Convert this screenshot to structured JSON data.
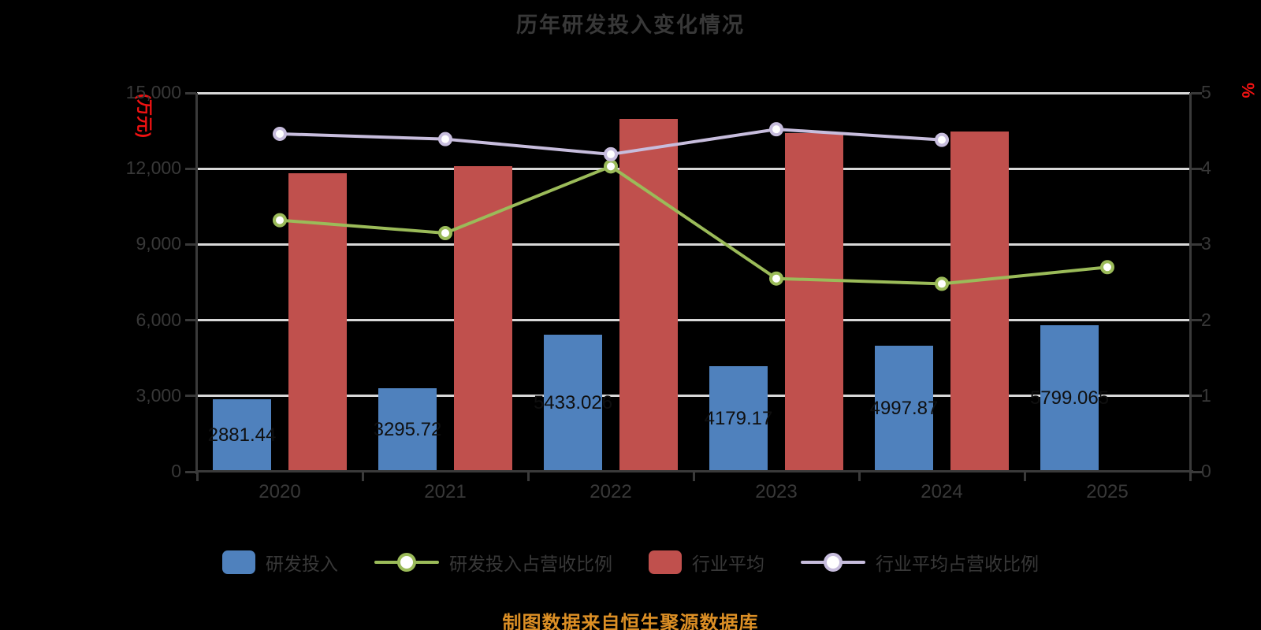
{
  "title": "历年研发投入变化情况",
  "caption": {
    "text": "制图数据来自恒生聚源数据库",
    "color": "#dc8f25"
  },
  "background": "#000000",
  "chart_data": {
    "type": "combo",
    "title": "历年研发投入变化情况",
    "categories": [
      "2020",
      "2021",
      "2022",
      "2023",
      "2024",
      "2025"
    ],
    "series": [
      {
        "name": "研发投入",
        "type": "bar",
        "axis": "left",
        "color": "#4f81bd",
        "values": [
          2881.44,
          3295.72,
          5433.026,
          4179.17,
          4997.87,
          5799.065
        ],
        "data_labels": [
          "2881.44",
          "3295.72",
          "5433.026",
          "4179.17",
          "4997.87",
          "5799.065"
        ],
        "label_color": "#0f0f0f"
      },
      {
        "name": "研发投入占营收比例",
        "type": "line",
        "axis": "right",
        "color": "#9bbb59",
        "marker_fill": "#ffffff",
        "values": [
          3.32,
          3.15,
          4.03,
          2.55,
          2.48,
          2.7
        ]
      },
      {
        "name": "行业平均",
        "type": "bar",
        "axis": "left",
        "color": "#c0504d",
        "values": [
          11820,
          12100,
          13970,
          13410,
          13470,
          null
        ]
      },
      {
        "name": "行业平均占营收比例",
        "type": "line",
        "axis": "right",
        "color": "#c7bddd",
        "marker_fill": "#ffffff",
        "values": [
          4.46,
          4.39,
          4.19,
          4.52,
          4.38,
          null
        ]
      }
    ],
    "axes": {
      "left": {
        "min": 0,
        "max": 15000,
        "step": 3000,
        "tick_labels": [
          "0",
          "3,000",
          "6,000",
          "9,000",
          "12,000",
          "15,000"
        ],
        "unit": "(万元)",
        "unit_color": "#f01212"
      },
      "right": {
        "min": 0,
        "max": 5,
        "step": 1,
        "tick_labels": [
          "0",
          "1",
          "2",
          "3",
          "4",
          "5"
        ],
        "unit": "%",
        "unit_color": "#f01212"
      }
    },
    "grid": true,
    "gridline_color": "#d8d8d8",
    "legend_position": "bottom"
  }
}
